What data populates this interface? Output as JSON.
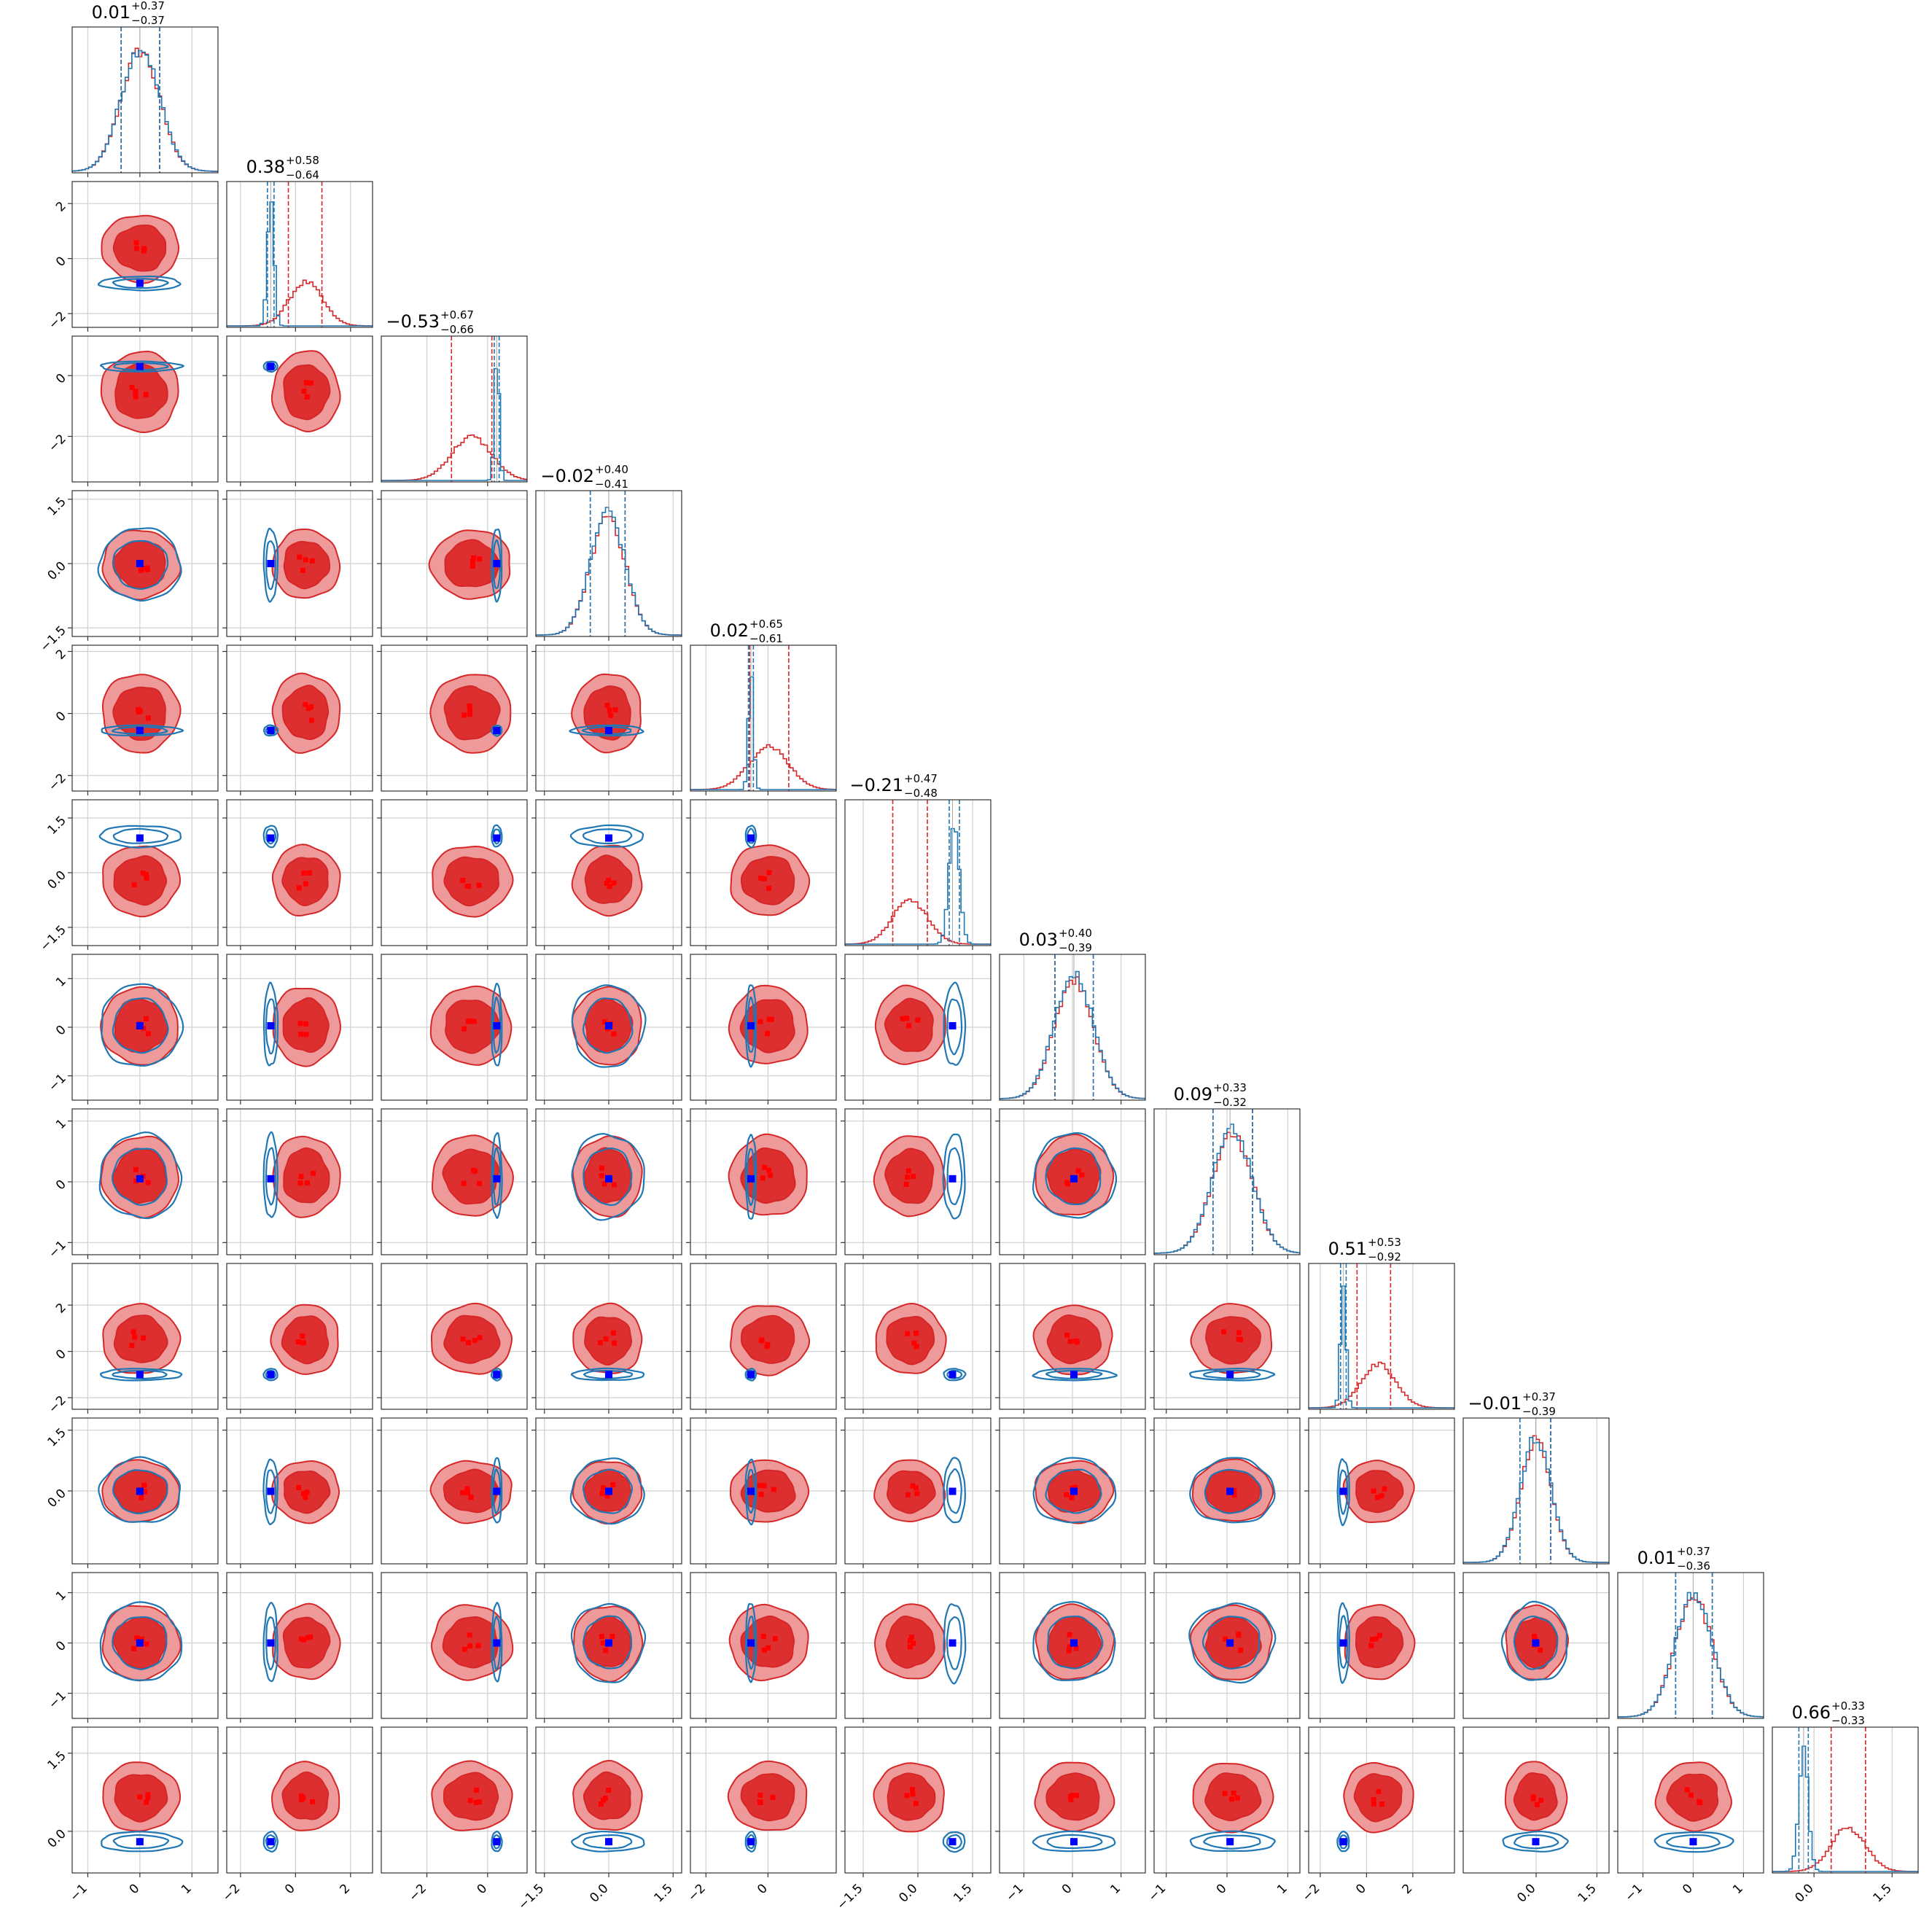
{
  "chart_data": {
    "type": "corner",
    "n_params": 12,
    "grid": true,
    "colors": {
      "red": "#d62728",
      "blue": "#1f77b4",
      "truth_marker": "#0000ff",
      "red_fill_inner": "#dd2f2f",
      "red_fill_outer": "#ee9a9a",
      "grid": "#d0d0d0"
    },
    "titles": [
      {
        "median": "0.01",
        "plus": "+0.37",
        "minus": "−0.37"
      },
      {
        "median": "0.38",
        "plus": "+0.58",
        "minus": "−0.64"
      },
      {
        "median": "−0.53",
        "plus": "+0.67",
        "minus": "−0.66"
      },
      {
        "median": "−0.02",
        "plus": "+0.40",
        "minus": "−0.41"
      },
      {
        "median": "0.02",
        "plus": "+0.65",
        "minus": "−0.61"
      },
      {
        "median": "−0.21",
        "plus": "+0.47",
        "minus": "−0.48"
      },
      {
        "median": "0.03",
        "plus": "+0.40",
        "minus": "−0.39"
      },
      {
        "median": "0.09",
        "plus": "+0.33",
        "minus": "−0.32"
      },
      {
        "median": "0.51",
        "plus": "+0.53",
        "minus": "−0.92"
      },
      {
        "median": "−0.01",
        "plus": "+0.37",
        "minus": "−0.39"
      },
      {
        "median": "0.01",
        "plus": "+0.37",
        "minus": "−0.36"
      },
      {
        "median": "0.66",
        "plus": "+0.33",
        "minus": "−0.33"
      }
    ],
    "x_ranges": [
      [
        -1.3,
        1.5
      ],
      [
        -2.5,
        2.8
      ],
      [
        -3.5,
        1.3
      ],
      [
        -1.7,
        1.7
      ],
      [
        -2.5,
        2.2
      ],
      [
        -2.0,
        2.0
      ],
      [
        -1.5,
        1.5
      ],
      [
        -1.2,
        1.2
      ],
      [
        -2.5,
        3.8
      ],
      [
        -1.8,
        1.8
      ],
      [
        -1.5,
        1.4
      ],
      [
        -0.8,
        2.0
      ]
    ],
    "x_ticks": [
      {
        "values": [
          -1,
          0,
          1
        ],
        "labels": [
          "−1",
          "0",
          "1"
        ]
      },
      {
        "values": [
          -2,
          0,
          2
        ],
        "labels": [
          "−2",
          "0",
          "2"
        ]
      },
      {
        "values": [
          -2,
          0
        ],
        "labels": [
          "−2",
          "0"
        ]
      },
      {
        "values": [
          -1.5,
          0,
          1.5
        ],
        "labels": [
          "−1.5",
          "0.0",
          "1.5"
        ]
      },
      {
        "values": [
          -2,
          0
        ],
        "labels": [
          "−2",
          "0"
        ]
      },
      {
        "values": [
          -1.5,
          0,
          1.5
        ],
        "labels": [
          "−1.5",
          "0.0",
          "1.5"
        ]
      },
      {
        "values": [
          -1,
          0,
          1
        ],
        "labels": [
          "−1",
          "0",
          "1"
        ]
      },
      {
        "values": [
          -1,
          0,
          1
        ],
        "labels": [
          "−1",
          "0",
          "1"
        ]
      },
      {
        "values": [
          -2,
          0,
          2
        ],
        "labels": [
          "−2",
          "0",
          "2"
        ]
      },
      {
        "values": [
          0,
          1.5
        ],
        "labels": [
          "0.0",
          "1.5"
        ]
      },
      {
        "values": [
          -1,
          0,
          1
        ],
        "labels": [
          "−1",
          "0",
          "1"
        ]
      },
      {
        "values": [
          0,
          1.5
        ],
        "labels": [
          "0.0",
          "1.5"
        ]
      }
    ],
    "y_ticks": [
      null,
      {
        "values": [
          -2,
          0,
          2
        ],
        "labels": [
          "−2",
          "0",
          "2"
        ]
      },
      {
        "values": [
          -2,
          0
        ],
        "labels": [
          "−2",
          "0"
        ]
      },
      {
        "values": [
          -1.5,
          0,
          1.5
        ],
        "labels": [
          "−1.5",
          "0.0",
          "1.5"
        ]
      },
      {
        "values": [
          -2,
          0,
          2
        ],
        "labels": [
          "−2",
          "0",
          "2"
        ]
      },
      {
        "values": [
          -1.5,
          0,
          1.5
        ],
        "labels": [
          "−1.5",
          "0.0",
          "1.5"
        ]
      },
      {
        "values": [
          -1,
          0,
          1
        ],
        "labels": [
          "−1",
          "0",
          "1"
        ]
      },
      {
        "values": [
          -1,
          0,
          1
        ],
        "labels": [
          "−1",
          "0",
          "1"
        ]
      },
      {
        "values": [
          -2,
          0,
          2
        ],
        "labels": [
          "−2",
          "0",
          "2"
        ]
      },
      {
        "values": [
          0,
          1.5
        ],
        "labels": [
          "0.0",
          "1.5"
        ]
      },
      {
        "values": [
          -1,
          0,
          1
        ],
        "labels": [
          "−1",
          "0",
          "1"
        ]
      },
      {
        "values": [
          0,
          1.5
        ],
        "labels": [
          "0.0",
          "1.5"
        ]
      }
    ],
    "red_posterior": {
      "mean": [
        0.01,
        0.38,
        -0.53,
        -0.02,
        0.02,
        -0.21,
        0.03,
        0.09,
        0.51,
        -0.01,
        0.01,
        0.66
      ],
      "sd": [
        0.37,
        0.61,
        0.66,
        0.4,
        0.63,
        0.48,
        0.4,
        0.33,
        0.75,
        0.38,
        0.37,
        0.33
      ],
      "quantiles_dashed": [
        [
          -0.36,
          0.38
        ],
        [
          -0.26,
          0.96
        ],
        [
          -1.19,
          0.14
        ],
        [
          -0.43,
          0.38
        ],
        [
          -0.59,
          0.67
        ],
        [
          -0.69,
          0.26
        ],
        [
          -0.36,
          0.43
        ],
        [
          -0.23,
          0.42
        ],
        [
          -0.41,
          1.04
        ],
        [
          -0.4,
          0.36
        ],
        [
          -0.35,
          0.38
        ],
        [
          0.33,
          0.99
        ]
      ]
    },
    "blue_posterior": {
      "mean": [
        0.01,
        -0.9,
        0.3,
        -0.02,
        -0.55,
        1.0,
        0.03,
        0.09,
        -1.0,
        -0.01,
        0.01,
        -0.2
      ],
      "sd": [
        0.37,
        0.12,
        0.08,
        0.4,
        0.08,
        0.14,
        0.4,
        0.33,
        0.12,
        0.38,
        0.37,
        0.09
      ],
      "quantiles_dashed": [
        [
          -0.36,
          0.38
        ],
        [
          -1.02,
          -0.78
        ],
        [
          0.22,
          0.38
        ],
        [
          -0.43,
          0.38
        ],
        [
          -0.63,
          -0.47
        ],
        [
          0.86,
          1.14
        ],
        [
          -0.36,
          0.43
        ],
        [
          -0.23,
          0.42
        ],
        [
          -1.12,
          -0.88
        ],
        [
          -0.4,
          0.36
        ],
        [
          -0.35,
          0.38
        ],
        [
          -0.29,
          -0.11
        ]
      ]
    },
    "truth_values": [
      0.0,
      -0.9,
      0.3,
      0.0,
      -0.55,
      0.95,
      0.03,
      0.05,
      -1.0,
      -0.01,
      0.0,
      -0.2
    ]
  }
}
